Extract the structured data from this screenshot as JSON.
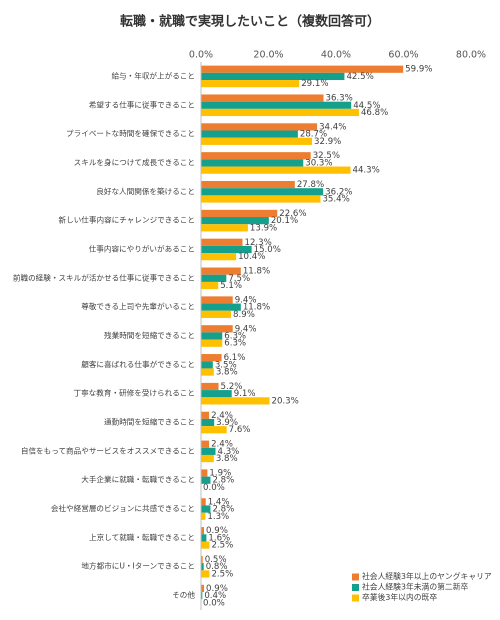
{
  "chart_data": {
    "type": "barh",
    "title": "転職・就職で実現したいこと（複数回答可）",
    "categories": [
      "給与・年収が上がること",
      "希望する仕事に従事できること",
      "プライベートな時間を確保できること",
      "スキルを身につけて成長できること",
      "良好な人間関係を築けること",
      "新しい仕事内容にチャレンジできること",
      "仕事内容にやりがいがあること",
      "前職の経験・スキルが活かせる仕事に従事できること",
      "尊敬できる上司や先輩がいること",
      "残業時間を短縮できること",
      "顧客に喜ばれる仕事ができること",
      "丁寧な教育・研修を受けられること",
      "通勤時間を短縮できること",
      "自信をもって商品やサービスをオススメできること",
      "大手企業に就職・転職できること",
      "会社や経営層のビジョンに共感できること",
      "上京して就職・転職できること",
      "地方都市にU・Iターンできること",
      "その他"
    ],
    "series": [
      {
        "name": "社会人経験3年以上のヤングキャリア",
        "color": "#ED7D31",
        "values": [
          59.9,
          36.3,
          34.4,
          32.5,
          27.8,
          22.6,
          12.3,
          11.8,
          9.4,
          9.4,
          6.1,
          5.2,
          2.4,
          2.4,
          1.9,
          1.4,
          0.9,
          0.5,
          0.9
        ],
        "value_labels": [
          "59.9%",
          "36.3%",
          "34.4%",
          "32.5%",
          "27.8%",
          "22.6%",
          "12.3%",
          "11.8%",
          "9.4%",
          "9.4%",
          "6.1%",
          "5.2%",
          "2.4%",
          "2.4%",
          "1.9%",
          "1.4%",
          "0.9%",
          "0.5%",
          "0.9%"
        ]
      },
      {
        "name": "社会人経験3年未満の第二新卒",
        "color": "#14A08C",
        "values": [
          42.5,
          44.5,
          28.7,
          30.3,
          36.2,
          20.1,
          15.0,
          7.5,
          11.8,
          6.3,
          3.5,
          9.1,
          3.9,
          4.3,
          2.8,
          2.8,
          1.6,
          0.8,
          0.4
        ],
        "value_labels": [
          "42.5%",
          "44.5%",
          "28.7%",
          "30.3%",
          "36.2%",
          "20.1%",
          "15.0%",
          "7.5%",
          "11.8%",
          "6.3%",
          "3.5%",
          "9.1%",
          "3.9%",
          "4.3%",
          "2.8%",
          "2.8%",
          "1.6%",
          "0.8%",
          "0.4%"
        ]
      },
      {
        "name": "卒業後3年以内の既卒",
        "color": "#FFC000",
        "values": [
          29.1,
          46.8,
          32.9,
          44.3,
          35.4,
          13.9,
          10.4,
          5.1,
          8.9,
          6.3,
          3.8,
          20.3,
          7.6,
          3.8,
          0.0,
          1.3,
          2.5,
          2.5,
          0.0
        ],
        "value_labels": [
          "29.1%",
          "46.8%",
          "32.9%",
          "44.3%",
          "35.4%",
          "13.9%",
          "10.4%",
          "5.1%",
          "8.9%",
          "6.3%",
          "3.8%",
          "20.3%",
          "7.6%",
          "3.8%",
          "0.0%",
          "1.3%",
          "2.5%",
          "2.5%",
          "0.0%"
        ]
      }
    ],
    "xlim": [
      0,
      80
    ],
    "xticks": [
      {
        "value": 0,
        "label": "0.0%"
      },
      {
        "value": 20,
        "label": "20.0%"
      },
      {
        "value": 40,
        "label": "40.0%"
      },
      {
        "value": 60,
        "label": "60.0%"
      },
      {
        "value": 80,
        "label": "80.0%"
      }
    ],
    "legend": "bottom-right"
  }
}
